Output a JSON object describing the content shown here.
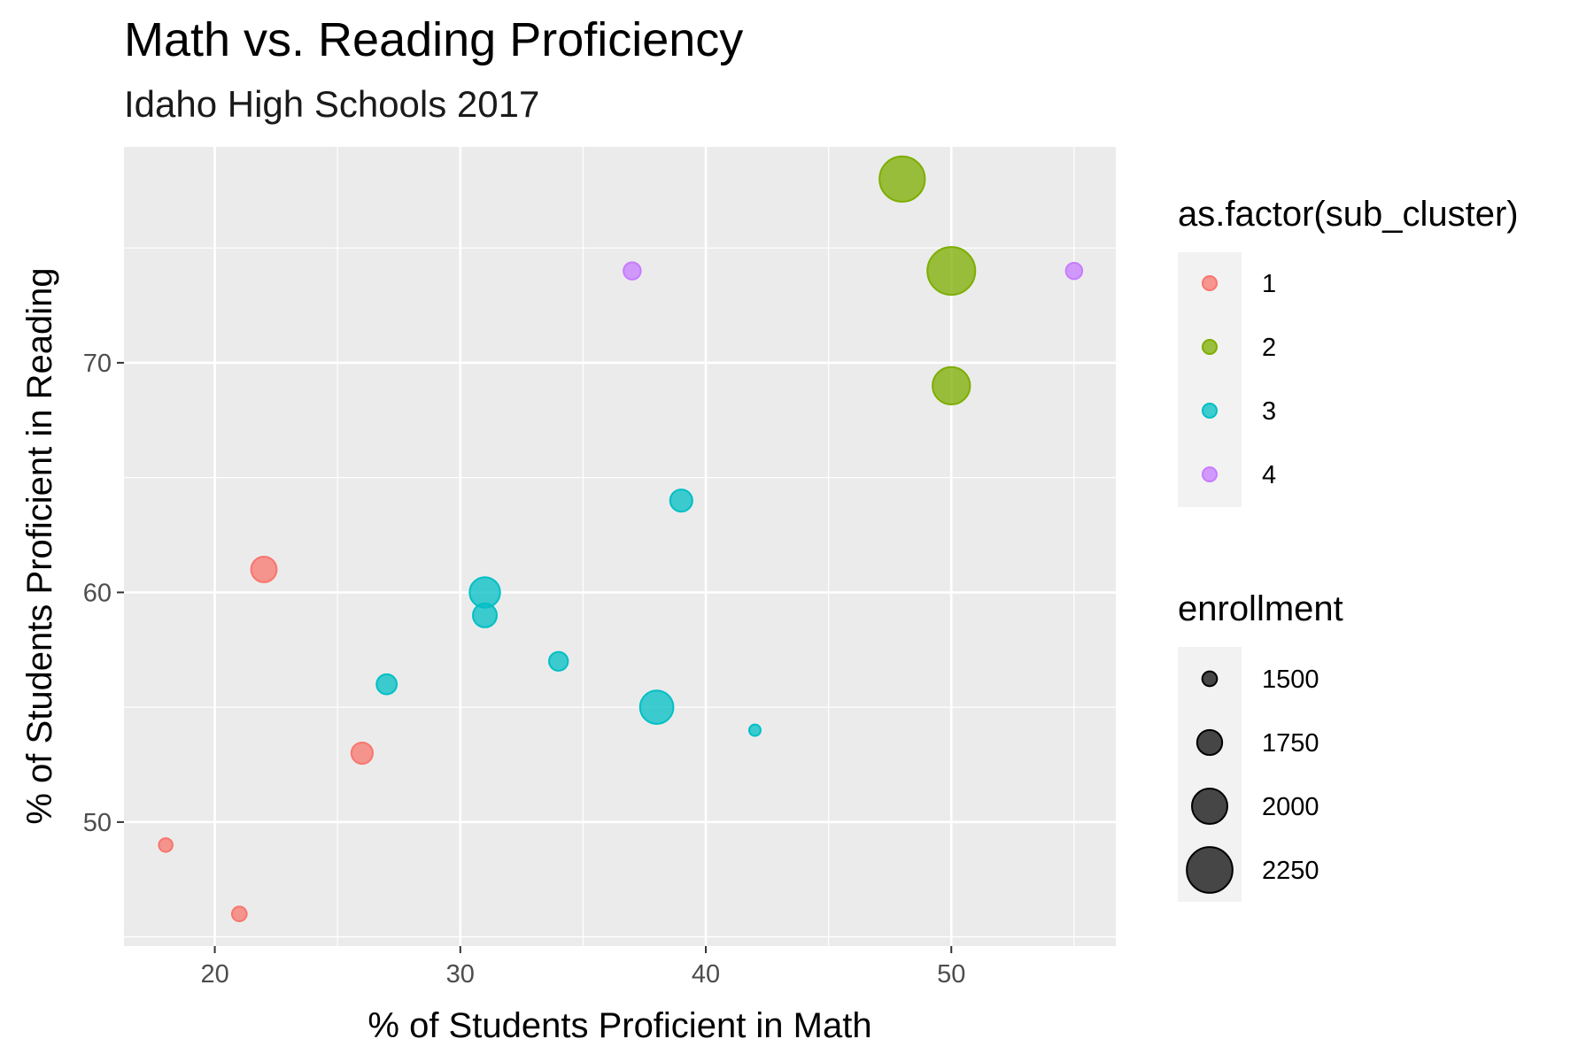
{
  "chart_data": {
    "type": "scatter",
    "title": "Math vs. Reading Proficiency",
    "subtitle": "Idaho High Schools 2017",
    "xlabel": "% of Students Proficient in Math",
    "ylabel": "% of Students Proficient in Reading",
    "xlim": [
      16.3,
      56.7
    ],
    "ylim": [
      44.6,
      79.4
    ],
    "x_ticks": [
      20,
      30,
      40,
      50
    ],
    "y_ticks": [
      50,
      60,
      70
    ],
    "grid": true,
    "legend_position": "right",
    "color_legend": {
      "title": "as.factor(sub_cluster)",
      "entries": [
        {
          "label": "1",
          "color": "#F8766D"
        },
        {
          "label": "2",
          "color": "#7CAE00"
        },
        {
          "label": "3",
          "color": "#00BFC4"
        },
        {
          "label": "4",
          "color": "#C77CFF"
        }
      ]
    },
    "size_legend": {
      "title": "enrollment",
      "entries": [
        {
          "label": "1500",
          "value": 1500
        },
        {
          "label": "1750",
          "value": 1750
        },
        {
          "label": "2000",
          "value": 2000
        },
        {
          "label": "2250",
          "value": 2250
        }
      ]
    },
    "size_range": [
      1400,
      2300
    ],
    "points": [
      {
        "x": 18,
        "y": 49,
        "cluster": "1",
        "enrollment": 1475
      },
      {
        "x": 21,
        "y": 46,
        "cluster": "1",
        "enrollment": 1500
      },
      {
        "x": 22,
        "y": 61,
        "cluster": "1",
        "enrollment": 1760
      },
      {
        "x": 26,
        "y": 53,
        "cluster": "1",
        "enrollment": 1660
      },
      {
        "x": 48,
        "y": 78,
        "cluster": "2",
        "enrollment": 2240
      },
      {
        "x": 50,
        "y": 74,
        "cluster": "2",
        "enrollment": 2300
      },
      {
        "x": 50,
        "y": 69,
        "cluster": "2",
        "enrollment": 2050
      },
      {
        "x": 27,
        "y": 56,
        "cluster": "3",
        "enrollment": 1630
      },
      {
        "x": 31,
        "y": 60,
        "cluster": "3",
        "enrollment": 1880
      },
      {
        "x": 31,
        "y": 59,
        "cluster": "3",
        "enrollment": 1720
      },
      {
        "x": 34,
        "y": 57,
        "cluster": "3",
        "enrollment": 1600
      },
      {
        "x": 38,
        "y": 55,
        "cluster": "3",
        "enrollment": 1950
      },
      {
        "x": 39,
        "y": 64,
        "cluster": "3",
        "enrollment": 1680
      },
      {
        "x": 42,
        "y": 54,
        "cluster": "3",
        "enrollment": 1420
      },
      {
        "x": 37,
        "y": 74,
        "cluster": "4",
        "enrollment": 1560
      },
      {
        "x": 55,
        "y": 74,
        "cluster": "4",
        "enrollment": 1540
      }
    ]
  }
}
